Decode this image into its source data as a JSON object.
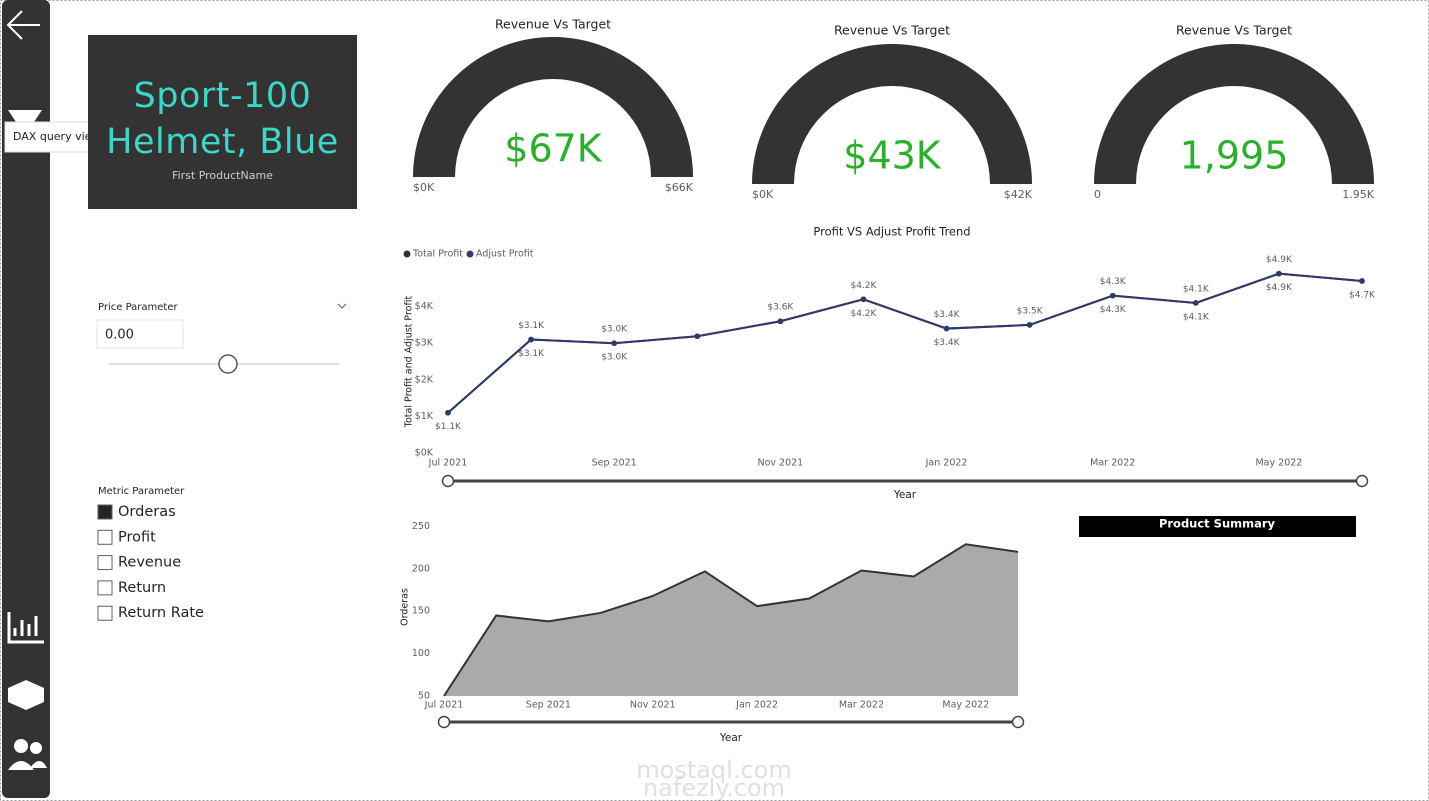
{
  "sidebar": {
    "tooltip": "DAX query view"
  },
  "card": {
    "value": "Sport-100 Helmet, Blue",
    "label": "First ProductName"
  },
  "price_slicer": {
    "title": "Price Parameter",
    "value": "0.00"
  },
  "metric_slicer": {
    "title": "Metric Parameter",
    "options": [
      "Orderas",
      "Profit",
      "Revenue",
      "Return",
      "Return Rate"
    ],
    "selected": "Orderas"
  },
  "product_summary": {
    "title": "Product Summary"
  },
  "watermark": [
    "mostaql.com",
    "nafezly.com"
  ],
  "chart_data": [
    {
      "type": "gauge",
      "title": "Revenue Vs Target",
      "value": 67000,
      "value_label": "$67K",
      "color": "#333333",
      "value_color": "#2bb02b",
      "ylim": [
        0,
        66000
      ],
      "yticks": [
        {
          "value": 0,
          "label": "$0K"
        },
        {
          "value": 66000,
          "label": "$66K"
        }
      ]
    },
    {
      "type": "gauge",
      "title": "Revenue Vs Target",
      "value": 43000,
      "value_label": "$43K",
      "color": "#333333",
      "value_color": "#2bb02b",
      "ylim": [
        0,
        42000
      ],
      "yticks": [
        {
          "value": 0,
          "label": "$0K"
        },
        {
          "value": 42000,
          "label": "$42K"
        }
      ]
    },
    {
      "type": "gauge",
      "title": "Revenue Vs Target",
      "value": 1995,
      "value_label": "1,995",
      "color": "#333333",
      "value_color": "#2bb02b",
      "ylim": [
        0,
        1950
      ],
      "yticks": [
        0,
        {
          "value": 1950,
          "label": "1.95K"
        }
      ]
    },
    {
      "type": "line",
      "title": "Profit VS Adjust Profit Trend",
      "x_label": "Year",
      "y_label": "Total Profit and Adjust Profit",
      "legend": "top-left",
      "categories": [
        "Jul 2021",
        null,
        "Sep 2021",
        null,
        "Nov 2021",
        null,
        "Jan 2022",
        null,
        "Mar 2022",
        null,
        "May 2022",
        null
      ],
      "series": [
        {
          "name": "Total Profit",
          "color": "#333333",
          "values": [
            1100,
            3100,
            3000,
            3190,
            3600,
            4200,
            3400,
            3500,
            4300,
            4100,
            4900,
            4700
          ],
          "value_labels": [
            null,
            "$3.1K",
            "$3.0K",
            null,
            "$3.6K",
            "$4.2K",
            "$3.4K",
            "$3.5K",
            "$4.3K",
            "$4.1K",
            "$4.9K",
            null
          ]
        },
        {
          "name": "Adjust Profit",
          "color": "#2f3a6b",
          "values": [
            1100,
            3100,
            3000,
            3190,
            3600,
            4200,
            3400,
            3500,
            4300,
            4100,
            4900,
            4700
          ],
          "value_labels": [
            "$1.1K",
            "$3.1K",
            "$3.0K",
            null,
            null,
            "$4.2K",
            "$3.4K",
            null,
            "$4.3K",
            "$4.1K",
            "$4.9K",
            "$4.7K"
          ]
        }
      ],
      "ylim": [
        0,
        5000
      ],
      "yticks": [
        {
          "value": 0,
          "label": "$0K"
        },
        {
          "value": 1000,
          "label": "$1K"
        },
        {
          "value": 2000,
          "label": "$2K"
        },
        {
          "value": 3000,
          "label": "$3K"
        },
        {
          "value": 4000,
          "label": "$4K"
        }
      ]
    },
    {
      "type": "area",
      "x_label": "Year",
      "y_label": "Orderas",
      "color": "#aaaaaa",
      "line_color": "#333333",
      "categories": [
        "Jul 2021",
        null,
        "Sep 2021",
        null,
        "Nov 2021",
        null,
        "Jan 2022",
        null,
        "Mar 2022",
        null,
        "May 2022",
        null
      ],
      "values": [
        50,
        145,
        138,
        148,
        168,
        197,
        156,
        165,
        198,
        191,
        229,
        220
      ],
      "ylim": [
        50,
        260
      ],
      "yticks": [
        50,
        100,
        150,
        200,
        250
      ]
    }
  ]
}
